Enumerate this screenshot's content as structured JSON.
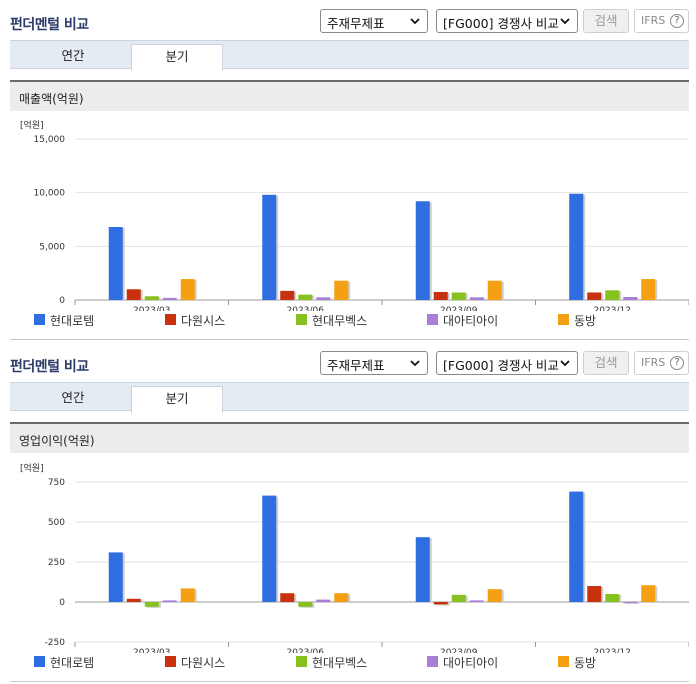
{
  "sections": [
    {
      "title": "펀더멘털 비교",
      "select_a": "주재무제표",
      "select_b": "[FG000] 경쟁사 비교",
      "search_label": "검색",
      "ifrs_label": "IFRS",
      "help_glyph": "?",
      "tabs": [
        {
          "label": "연간",
          "active": false
        },
        {
          "label": "분기",
          "active": true
        }
      ],
      "chart_title": "매출액(억원)",
      "unit_label": "[억원]"
    },
    {
      "title": "펀더멘털 비교",
      "select_a": "주재무제표",
      "select_b": "[FG000] 경쟁사 비교",
      "search_label": "검색",
      "ifrs_label": "IFRS",
      "help_glyph": "?",
      "tabs": [
        {
          "label": "연간",
          "active": false
        },
        {
          "label": "분기",
          "active": true
        }
      ],
      "chart_title": "영업이익(억원)",
      "unit_label": "[억원]"
    }
  ],
  "legend": [
    "현대로템",
    "다원시스",
    "현대무벡스",
    "대아티아이",
    "동방"
  ],
  "colors": {
    "series": [
      "#2f6ee0",
      "#c8310d",
      "#86c11f",
      "#a97fd6",
      "#f4a012"
    ],
    "title": "#2b3a67",
    "tab_bar": "#e4ebf3"
  },
  "icons": {
    "select_chevron": "chevron-down-icon",
    "help": "question-circle-icon"
  },
  "chart_data": [
    {
      "type": "bar",
      "title": "매출액(억원)",
      "ylabel": "[억원]",
      "categories": [
        "2023/03",
        "2023/06",
        "2023/09",
        "2023/12"
      ],
      "ylim": [
        0,
        15000
      ],
      "yticks": [
        0,
        5000,
        10000,
        15000
      ],
      "ytick_labels": [
        "0",
        "5,000",
        "10,000",
        "15,000"
      ],
      "series": [
        {
          "name": "현대로템",
          "values": [
            6800,
            9800,
            9200,
            9900
          ]
        },
        {
          "name": "다원시스",
          "values": [
            1000,
            850,
            750,
            700
          ]
        },
        {
          "name": "현대무벡스",
          "values": [
            350,
            500,
            700,
            900
          ]
        },
        {
          "name": "대아티아이",
          "values": [
            200,
            250,
            250,
            280
          ]
        },
        {
          "name": "동방",
          "values": [
            1950,
            1800,
            1800,
            1950
          ]
        }
      ],
      "grid": true,
      "legend_position": "bottom"
    },
    {
      "type": "bar",
      "title": "영업이익(억원)",
      "ylabel": "[억원]",
      "categories": [
        "2023/03",
        "2023/06",
        "2023/09",
        "2023/12"
      ],
      "ylim": [
        -250,
        750
      ],
      "yticks": [
        -250,
        0,
        250,
        500,
        750
      ],
      "ytick_labels": [
        "-250",
        "0",
        "250",
        "500",
        "750"
      ],
      "series": [
        {
          "name": "현대로템",
          "values": [
            310,
            665,
            405,
            690
          ]
        },
        {
          "name": "다원시스",
          "values": [
            20,
            55,
            -15,
            100
          ]
        },
        {
          "name": "현대무벡스",
          "values": [
            -30,
            -30,
            45,
            50
          ]
        },
        {
          "name": "대아티아이",
          "values": [
            10,
            15,
            10,
            0
          ]
        },
        {
          "name": "동방",
          "values": [
            85,
            55,
            80,
            105
          ]
        }
      ],
      "grid": true,
      "legend_position": "bottom"
    }
  ]
}
